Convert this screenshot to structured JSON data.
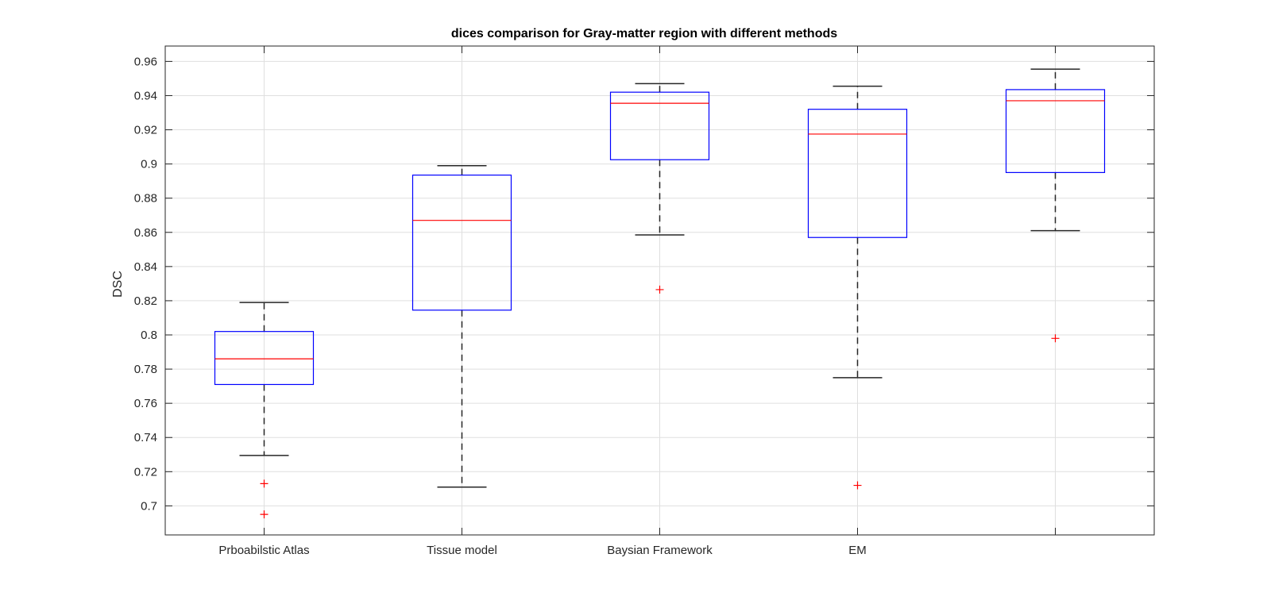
{
  "chart_data": {
    "type": "box",
    "title": "dices comparison for Gray-matter region with different methods",
    "xlabel": "",
    "ylabel": "DSC",
    "ylim": [
      0.683,
      0.969
    ],
    "yticks": [
      0.7,
      0.72,
      0.74,
      0.76,
      0.78,
      0.8,
      0.82,
      0.84,
      0.86,
      0.88,
      0.9,
      0.92,
      0.94,
      0.96
    ],
    "ytick_labels": [
      "0.7",
      "0.72",
      "0.74",
      "0.76",
      "0.78",
      "0.8",
      "0.82",
      "0.84",
      "0.86",
      "0.88",
      "0.9",
      "0.92",
      "0.94",
      "0.96"
    ],
    "grid": true,
    "categories": [
      "Prboabilstic Atlas",
      "Tissue model",
      "Baysian Framework",
      "EM",
      ""
    ],
    "boxes": [
      {
        "whisker_low": 0.7295,
        "q1": 0.771,
        "median": 0.786,
        "q3": 0.802,
        "whisker_high": 0.819,
        "outliers": [
          0.713,
          0.695
        ]
      },
      {
        "whisker_low": 0.711,
        "q1": 0.8145,
        "median": 0.867,
        "q3": 0.8935,
        "whisker_high": 0.899,
        "outliers": []
      },
      {
        "whisker_low": 0.8585,
        "q1": 0.9025,
        "median": 0.9355,
        "q3": 0.942,
        "whisker_high": 0.947,
        "outliers": [
          0.8265
        ]
      },
      {
        "whisker_low": 0.775,
        "q1": 0.857,
        "median": 0.9175,
        "q3": 0.932,
        "whisker_high": 0.9455,
        "outliers": [
          0.712
        ]
      },
      {
        "whisker_low": 0.861,
        "q1": 0.895,
        "median": 0.937,
        "q3": 0.9435,
        "whisker_high": 0.9555,
        "outliers": [
          0.798
        ]
      }
    ],
    "colors": {
      "box": "#0000ff",
      "median": "#ff0000",
      "whisker": "#262626",
      "outlier": "#ff0000",
      "grid": "#dfdfdf",
      "axis": "#262626"
    }
  }
}
